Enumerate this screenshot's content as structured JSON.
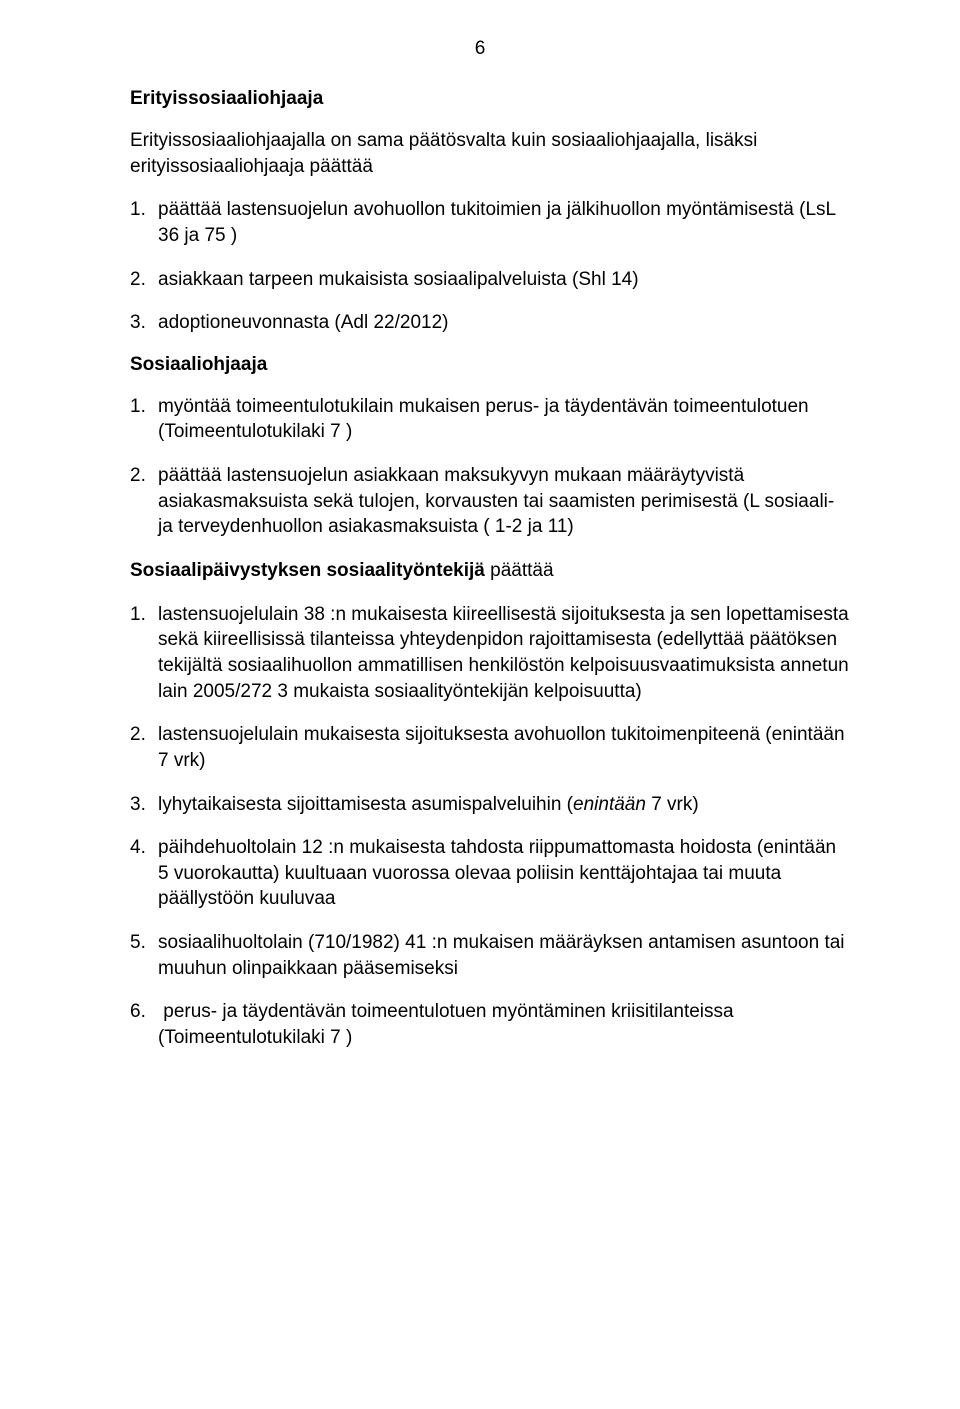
{
  "page_number": "6",
  "section1": {
    "heading": "Erityissosiaaliohjaaja",
    "intro": "Erityissosiaaliohjaajalla on sama päätösvalta kuin sosiaaliohjaajalla, lisäksi erityissosiaaliohjaaja päättää",
    "items": [
      "päättää lastensuojelun avohuollon tukitoimien ja jälkihuollon myöntämisestä (LsL 36 ja 75 )",
      "asiakkaan tarpeen mukaisista sosiaalipalveluista (Shl 14)",
      "adoptioneuvonnasta (Adl 22/2012)"
    ]
  },
  "section2": {
    "heading": "Sosiaaliohjaaja",
    "items": [
      "myöntää toimeentulotukilain mukaisen perus- ja täydentävän toimeentulotuen (Toimeentulotukilaki 7 )",
      "päättää lastensuojelun asiakkaan maksukyvyn mukaan määräytyvistä asiakasmaksuista sekä tulojen, korvausten tai saamisten perimisestä (L sosiaali- ja terveydenhuollon asiakasmaksuista ( 1-2 ja 11)"
    ]
  },
  "section3": {
    "heading_bold": "Sosiaalipäivystyksen sosiaalityöntekijä",
    "heading_rest": " päättää",
    "items": [
      {
        "text": "lastensuojelulain 38 :n mukaisesta kiireellisestä sijoituksesta ja sen lopettamisesta sekä kiireellisissä tilanteissa yhteydenpidon rajoittamisesta (edellyttää päätöksen tekijältä sosiaalihuollon ammatillisen henkilöstön kelpoisuusvaatimuksista annetun lain 2005/272 3 mukaista sosiaalityöntekijän kelpoisuutta)"
      },
      {
        "text": "lastensuojelulain mukaisesta sijoituksesta avohuollon tukitoimenpiteenä (enintään 7 vrk)"
      },
      {
        "prefix": "lyhytaikaisesta sijoittamisesta asumispalveluihin (",
        "italic": "enintään",
        "suffix": " 7 vrk)"
      },
      {
        "text": "päihdehuoltolain 12 :n mukaisesta tahdosta riippumattomasta hoidosta (enintään 5 vuorokautta) kuultuaan vuorossa olevaa poliisin kenttäjohtajaa tai muuta päällystöön kuuluvaa"
      },
      {
        "text": "sosiaalihuoltolain (710/1982) 41 :n mukaisen määräyksen antamisen asuntoon tai muuhun olinpaikkaan pääsemiseksi"
      },
      {
        "text": " perus- ja täydentävän toimeentulotuen myöntäminen kriisitilanteissa (Toimeentulotukilaki 7 )"
      }
    ]
  }
}
